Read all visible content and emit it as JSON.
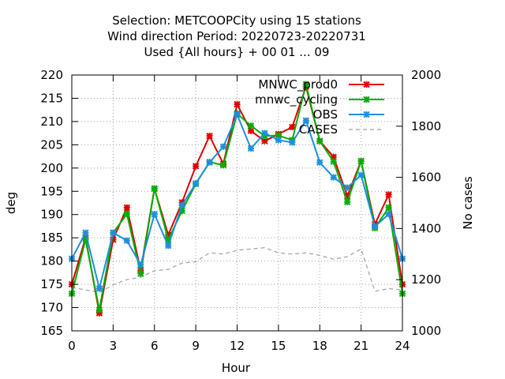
{
  "chart_data": {
    "type": "line",
    "title_lines": [
      "Selection: METCOOPCity using    15 stations",
      "Wind direction   Period: 20220723-20220731",
      "Used {All hours} + 00 01 ... 09"
    ],
    "xlabel": "Hour",
    "ylabel": "deg",
    "y2label": "No cases",
    "xlim": [
      0,
      24
    ],
    "ylim": [
      165,
      220
    ],
    "y2lim": [
      1000,
      2000
    ],
    "xticks": [
      0,
      3,
      6,
      9,
      12,
      15,
      18,
      21,
      24
    ],
    "yticks": [
      165,
      170,
      175,
      180,
      185,
      190,
      195,
      200,
      205,
      210,
      215,
      220
    ],
    "y2ticks": [
      1000,
      1200,
      1400,
      1600,
      1800,
      2000
    ],
    "grid": true,
    "legend_position": "top-right",
    "x": [
      0,
      1,
      2,
      3,
      4,
      5,
      6,
      7,
      8,
      9,
      10,
      11,
      12,
      13,
      14,
      15,
      16,
      17,
      18,
      19,
      20,
      21,
      22,
      23,
      24
    ],
    "series": [
      {
        "name": "MNWC_prod0",
        "color": "#e00000",
        "axis": "y",
        "values": [
          175.0,
          185.0,
          168.8,
          184.6,
          191.5,
          178.0,
          195.6,
          185.6,
          192.6,
          200.4,
          206.9,
          200.9,
          213.7,
          208.0,
          205.8,
          207.3,
          208.8,
          217.5,
          205.8,
          202.4,
          194.0,
          201.5,
          187.9,
          194.3,
          175.0
        ]
      },
      {
        "name": "mnwc_cycling",
        "color": "#00b000",
        "axis": "y",
        "values": [
          173.0,
          184.6,
          169.5,
          186.1,
          190.1,
          177.3,
          195.6,
          184.6,
          190.8,
          196.6,
          201.3,
          200.6,
          211.7,
          209.1,
          206.9,
          207.0,
          206.0,
          218.0,
          205.8,
          201.4,
          192.7,
          201.5,
          187.1,
          191.5,
          173.0
        ]
      },
      {
        "name": "OBS",
        "color": "#1e8fdc",
        "axis": "y",
        "values": [
          180.5,
          186.1,
          174.1,
          186.1,
          184.4,
          179.2,
          190.1,
          183.3,
          192.0,
          196.7,
          201.2,
          204.6,
          211.5,
          204.2,
          207.5,
          206.0,
          205.5,
          210.2,
          201.2,
          198.0,
          195.8,
          198.5,
          187.4,
          190.1,
          180.5
        ]
      },
      {
        "name": "CASES",
        "color": "#a0a0a0",
        "axis": "y2",
        "values": [
          1170,
          1160,
          1150,
          1180,
          1200,
          1210,
          1235,
          1240,
          1265,
          1270,
          1305,
          1300,
          1315,
          1320,
          1325,
          1305,
          1300,
          1305,
          1295,
          1280,
          1290,
          1320,
          1155,
          1165,
          1160
        ]
      }
    ]
  }
}
